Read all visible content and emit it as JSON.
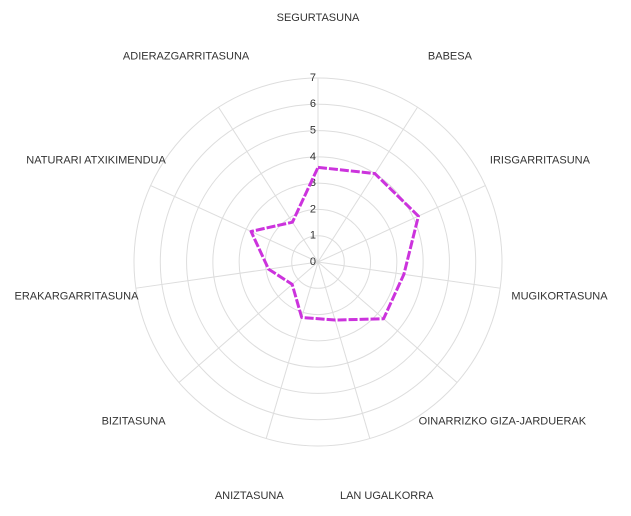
{
  "chart_data": {
    "type": "radar",
    "categories": [
      "SEGURTASUNA",
      "BABESA",
      "IRISGARRITASUNA",
      "MUGIKORTASUNA",
      "OINARRIZKO GIZA-JARDUERAK",
      "LAN UGALKORRA",
      "ANIZTASUNA",
      "BIZITASUNA",
      "ERAKARGARRITASUNA",
      "NATURARI ATXIKIMENDUA",
      "ADIERAZGARRITASUNA"
    ],
    "values": [
      3.6,
      4.0,
      4.2,
      3.3,
      3.3,
      2.3,
      2.2,
      1.3,
      1.9,
      2.8,
      1.8
    ],
    "color": "#cc33dd",
    "ylim": [
      0,
      7
    ],
    "yticks": [
      0,
      1,
      2,
      3,
      4,
      5,
      6,
      7
    ],
    "grid": true
  }
}
